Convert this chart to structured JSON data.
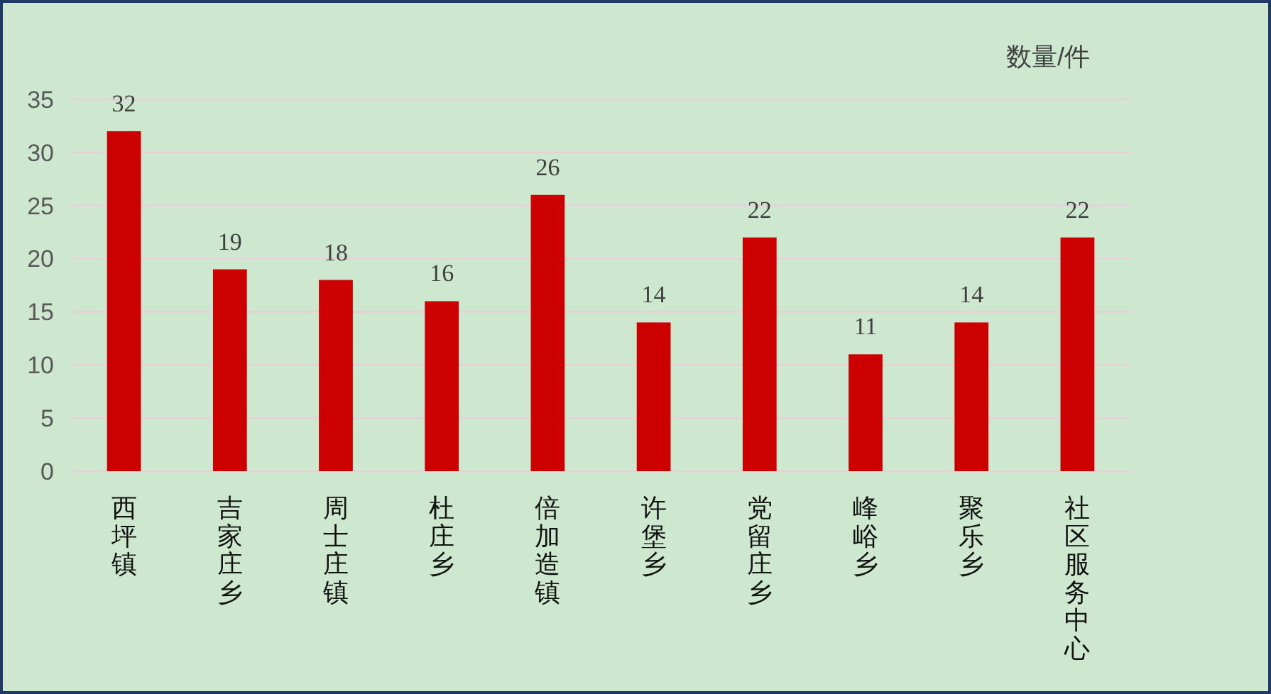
{
  "chart_data": {
    "type": "bar",
    "ylabel": "数量/件",
    "categories": [
      "西坪镇",
      "吉家庄乡",
      "周士庄镇",
      "杜庄乡",
      "倍加造镇",
      "许堡乡",
      "党留庄乡",
      "峰峪乡",
      "聚乐乡",
      "社区服务中心"
    ],
    "values": [
      32,
      19,
      18,
      16,
      26,
      14,
      22,
      11,
      14,
      22
    ],
    "color": "#cc0000",
    "ylim": [
      0,
      35
    ],
    "yticks": [
      0,
      5,
      10,
      15,
      20,
      25,
      30,
      35
    ],
    "grid": "y",
    "data_labels": true
  }
}
